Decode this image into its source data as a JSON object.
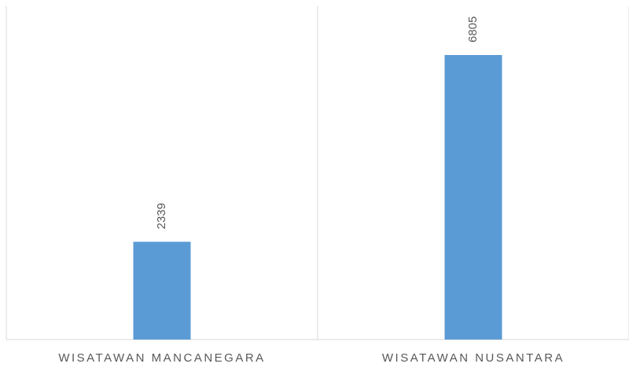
{
  "chart_data": {
    "type": "bar",
    "categories": [
      "WISATAWAN MANCANEGARA",
      "WISATAWAN NUSANTARA"
    ],
    "values": [
      2339,
      6805
    ],
    "color": "#5b9bd5"
  }
}
